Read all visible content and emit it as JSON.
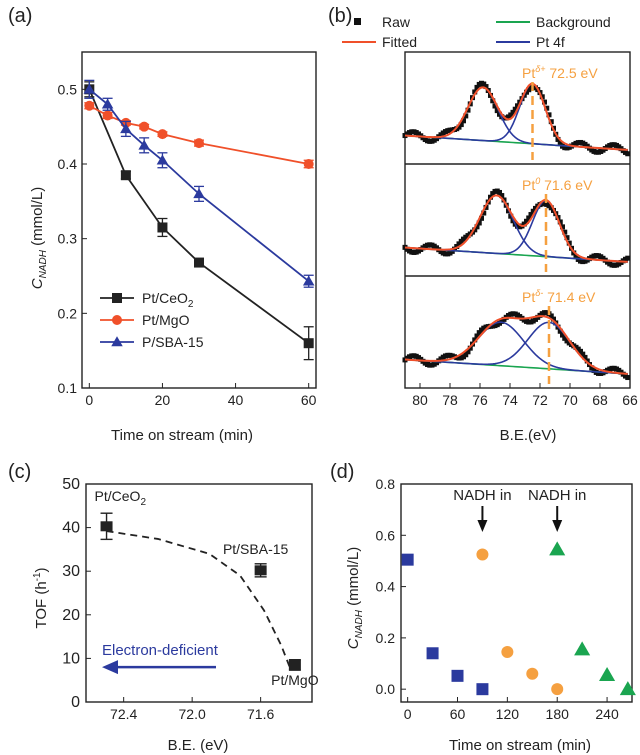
{
  "panels": [
    {
      "label": "(a)",
      "chart_data": {
        "type": "line",
        "xlabel": "Time on stream (min)",
        "ylabel_main": "C",
        "ylabel_sub": "NADH",
        "ylabel_unit": " (mmol/L)",
        "xlim": [
          -2,
          62
        ],
        "ylim": [
          0.1,
          0.55
        ],
        "xticks": [
          0,
          20,
          40,
          60
        ],
        "yticks": [
          0.1,
          0.2,
          0.3,
          0.4,
          0.5
        ],
        "series": [
          {
            "name": "Pt/CeO",
            "name_sub": "2",
            "color": "#222222",
            "marker": "square",
            "x": [
              0,
              10,
              20,
              30,
              60
            ],
            "y": [
              0.5,
              0.385,
              0.315,
              0.268,
              0.16
            ],
            "err": [
              0.01,
              0.005,
              0.012,
              0.004,
              0.022
            ]
          },
          {
            "name": "Pt/MgO",
            "name_sub": "",
            "color": "#f0502a",
            "marker": "circle",
            "x": [
              0,
              5,
              10,
              15,
              20,
              30,
              60
            ],
            "y": [
              0.478,
              0.465,
              0.455,
              0.45,
              0.44,
              0.428,
              0.4
            ],
            "err": [
              0.004,
              0.004,
              0.003,
              0.003,
              0.003,
              0.004,
              0.005
            ]
          },
          {
            "name": "P/SBA-15",
            "name_sub": "",
            "color": "#2b3a9e",
            "marker": "triangle",
            "x": [
              0,
              5,
              10,
              15,
              20,
              30,
              60
            ],
            "y": [
              0.5,
              0.48,
              0.447,
              0.425,
              0.405,
              0.36,
              0.243
            ],
            "err": [
              0.012,
              0.008,
              0.01,
              0.01,
              0.01,
              0.01,
              0.008
            ]
          }
        ]
      }
    },
    {
      "label": "(b)",
      "chart_data": {
        "type": "line",
        "xlabel": "B.E.(eV)",
        "xlim": [
          81,
          66
        ],
        "xticks": [
          80,
          78,
          76,
          74,
          72,
          70,
          68,
          66
        ],
        "legend": [
          "Raw",
          "Fitted",
          "Background",
          "Pt 4f"
        ],
        "legend_colors": [
          "#111111",
          "#f0502a",
          "#1aa550",
          "#2b3a9e"
        ],
        "subpanels": [
          {
            "annotation_base": "Pt",
            "annotation_sup": "δ+",
            "annotation_text": " 72.5 eV",
            "dash_x": 72.5,
            "peaks": [
              {
                "c": 75.8,
                "a": 0.55,
                "w": 1.0
              },
              {
                "c": 72.5,
                "a": 0.62,
                "w": 0.85
              }
            ]
          },
          {
            "annotation_base": "Pt",
            "annotation_sup": "0",
            "annotation_text": " 71.6 eV",
            "dash_x": 71.6,
            "peaks": [
              {
                "c": 74.9,
                "a": 0.6,
                "w": 1.1
              },
              {
                "c": 71.6,
                "a": 0.58,
                "w": 0.9
              }
            ]
          },
          {
            "annotation_base": "Pt",
            "annotation_sup": "δ-",
            "annotation_text": " 71.4 eV",
            "dash_x": 71.4,
            "peaks": [
              {
                "c": 74.6,
                "a": 0.45,
                "w": 1.5
              },
              {
                "c": 71.4,
                "a": 0.48,
                "w": 1.4
              }
            ]
          }
        ]
      }
    },
    {
      "label": "(c)",
      "chart_data": {
        "type": "scatter",
        "xlabel": "B.E. (eV)",
        "ylabel": "TOF (h",
        "ylabel_sup": "-1",
        "ylabel_end": ")",
        "xlim": [
          72.62,
          71.3
        ],
        "ylim": [
          0,
          50
        ],
        "xticks": [
          72.4,
          72.0,
          71.6
        ],
        "xtick_labels": [
          "72.4",
          "72.0",
          "71.6"
        ],
        "yticks": [
          0,
          10,
          20,
          30,
          40,
          50
        ],
        "points": [
          {
            "name": "Pt/CeO",
            "name_sub": "2",
            "x": 72.5,
            "y": 40.3,
            "err": 3.0
          },
          {
            "name": "Pt/SBA-15",
            "name_sub": "",
            "x": 71.6,
            "y": 30.2,
            "err": 1.5
          },
          {
            "name": "Pt/MgO",
            "name_sub": "",
            "x": 71.4,
            "y": 8.5,
            "err": 1.2
          }
        ],
        "trend_curve": [
          [
            72.5,
            39.2
          ],
          [
            72.2,
            37.4
          ],
          [
            71.9,
            34.0
          ],
          [
            71.72,
            29.0
          ],
          [
            71.58,
            21.0
          ],
          [
            71.48,
            13.0
          ],
          [
            71.43,
            8.0
          ]
        ],
        "arrow_label": "Electron-deficient",
        "arrow_color": "#2b3a9e"
      }
    },
    {
      "label": "(d)",
      "chart_data": {
        "type": "scatter",
        "xlabel": "Time on stream (min)",
        "ylabel_main": "C",
        "ylabel_sub": "NADH",
        "ylabel_unit": " (mmol/L)",
        "xlim": [
          -8,
          270
        ],
        "ylim": [
          -0.05,
          0.8
        ],
        "xticks": [
          0,
          60,
          120,
          180,
          240
        ],
        "yticks": [
          0.0,
          0.2,
          0.4,
          0.6,
          0.8
        ],
        "ytick_labels": [
          "0.0",
          "0.2",
          "0.4",
          "0.6",
          "0.8"
        ],
        "series": [
          {
            "color": "#2b3a9e",
            "marker": "square",
            "x": [
              0,
              30,
              60,
              90
            ],
            "y": [
              0.505,
              0.14,
              0.052,
              0.0
            ]
          },
          {
            "color": "#f5a040",
            "marker": "circle",
            "x": [
              90,
              120,
              150,
              180
            ],
            "y": [
              0.525,
              0.145,
              0.06,
              0.0
            ]
          },
          {
            "color": "#1aa550",
            "marker": "triangle",
            "x": [
              180,
              210,
              240,
              265
            ],
            "y": [
              0.545,
              0.155,
              0.055,
              0.0
            ]
          }
        ],
        "annotations": [
          {
            "text": "NADH in",
            "x": 90
          },
          {
            "text": "NADH in",
            "x": 180
          }
        ]
      }
    }
  ]
}
